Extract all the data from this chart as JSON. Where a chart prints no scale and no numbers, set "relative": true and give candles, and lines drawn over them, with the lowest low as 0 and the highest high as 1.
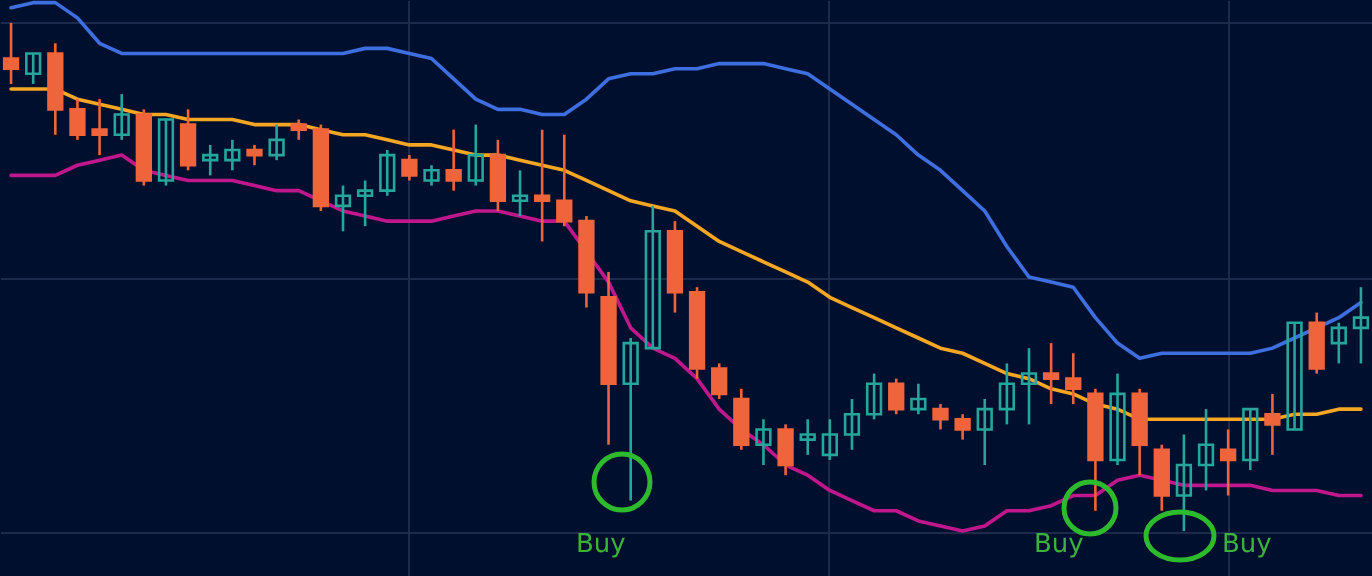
{
  "chart_data": {
    "type": "candlestick",
    "relative": true,
    "grid": true,
    "categories": [
      null,
      null,
      null,
      null,
      null,
      null,
      null,
      null,
      null,
      null,
      null,
      null,
      null,
      null,
      null,
      null,
      null,
      null,
      null,
      null,
      null,
      null,
      null,
      null,
      null,
      null,
      null,
      null,
      null,
      null,
      null,
      null,
      null,
      null,
      null,
      null,
      null,
      null,
      null,
      null,
      null,
      null,
      null,
      null,
      null,
      null,
      null,
      null,
      null,
      null,
      null,
      null,
      null,
      null,
      null,
      null,
      null,
      null,
      null,
      null,
      null,
      null
    ],
    "ohlc": [
      [
        0.93,
        1.0,
        0.88,
        0.91
      ],
      [
        0.9,
        0.94,
        0.88,
        0.94
      ],
      [
        0.94,
        0.96,
        0.78,
        0.83
      ],
      [
        0.83,
        0.85,
        0.77,
        0.78
      ],
      [
        0.79,
        0.85,
        0.74,
        0.78
      ],
      [
        0.78,
        0.86,
        0.77,
        0.82
      ],
      [
        0.82,
        0.83,
        0.68,
        0.69
      ],
      [
        0.69,
        0.81,
        0.68,
        0.81
      ],
      [
        0.8,
        0.83,
        0.71,
        0.72
      ],
      [
        0.73,
        0.76,
        0.7,
        0.74
      ],
      [
        0.73,
        0.77,
        0.71,
        0.75
      ],
      [
        0.75,
        0.76,
        0.72,
        0.74
      ],
      [
        0.74,
        0.8,
        0.73,
        0.77
      ],
      [
        0.8,
        0.81,
        0.77,
        0.79
      ],
      [
        0.79,
        0.8,
        0.63,
        0.64
      ],
      [
        0.64,
        0.68,
        0.59,
        0.66
      ],
      [
        0.66,
        0.69,
        0.6,
        0.67
      ],
      [
        0.67,
        0.75,
        0.66,
        0.74
      ],
      [
        0.73,
        0.74,
        0.69,
        0.7
      ],
      [
        0.69,
        0.72,
        0.68,
        0.71
      ],
      [
        0.71,
        0.79,
        0.67,
        0.69
      ],
      [
        0.69,
        0.8,
        0.68,
        0.74
      ],
      [
        0.74,
        0.77,
        0.63,
        0.65
      ],
      [
        0.65,
        0.71,
        0.62,
        0.66
      ],
      [
        0.66,
        0.79,
        0.57,
        0.65
      ],
      [
        0.65,
        0.78,
        0.6,
        0.61
      ],
      [
        0.61,
        0.62,
        0.44,
        0.47
      ],
      [
        0.46,
        0.51,
        0.17,
        0.29
      ],
      [
        0.29,
        0.38,
        0.06,
        0.37
      ],
      [
        0.36,
        0.64,
        0.36,
        0.59
      ],
      [
        0.59,
        0.61,
        0.43,
        0.47
      ],
      [
        0.47,
        0.48,
        0.3,
        0.32
      ],
      [
        0.32,
        0.33,
        0.26,
        0.27
      ],
      [
        0.26,
        0.28,
        0.16,
        0.17
      ],
      [
        0.17,
        0.22,
        0.13,
        0.2
      ],
      [
        0.2,
        0.21,
        0.11,
        0.13
      ],
      [
        0.18,
        0.22,
        0.15,
        0.19
      ],
      [
        0.15,
        0.22,
        0.14,
        0.19
      ],
      [
        0.19,
        0.26,
        0.16,
        0.23
      ],
      [
        0.23,
        0.31,
        0.22,
        0.29
      ],
      [
        0.29,
        0.3,
        0.23,
        0.24
      ],
      [
        0.24,
        0.29,
        0.23,
        0.26
      ],
      [
        0.24,
        0.25,
        0.2,
        0.22
      ],
      [
        0.22,
        0.23,
        0.18,
        0.2
      ],
      [
        0.2,
        0.26,
        0.13,
        0.24
      ],
      [
        0.24,
        0.33,
        0.21,
        0.29
      ],
      [
        0.29,
        0.36,
        0.21,
        0.31
      ],
      [
        0.31,
        0.37,
        0.25,
        0.3
      ],
      [
        0.3,
        0.35,
        0.25,
        0.28
      ],
      [
        0.27,
        0.28,
        0.04,
        0.14
      ],
      [
        0.14,
        0.31,
        0.13,
        0.27
      ],
      [
        0.27,
        0.28,
        0.11,
        0.17
      ],
      [
        0.16,
        0.17,
        0.04,
        0.07
      ],
      [
        0.07,
        0.19,
        0.0,
        0.13
      ],
      [
        0.13,
        0.24,
        0.08,
        0.17
      ],
      [
        0.16,
        0.2,
        0.07,
        0.14
      ],
      [
        0.14,
        0.24,
        0.12,
        0.24
      ],
      [
        0.23,
        0.27,
        0.15,
        0.21
      ],
      [
        0.2,
        0.41,
        0.2,
        0.41
      ],
      [
        0.41,
        0.43,
        0.31,
        0.32
      ],
      [
        0.37,
        0.41,
        0.33,
        0.4
      ],
      [
        0.4,
        0.48,
        0.33,
        0.42
      ]
    ],
    "colors": [
      "#f0643c",
      "#26a69a",
      "#f0643c",
      "#f0643c",
      "#f0643c",
      "#26a69a",
      "#f0643c",
      "#26a69a",
      "#f0643c",
      "#26a69a",
      "#26a69a",
      "#f0643c",
      "#26a69a",
      "#f0643c",
      "#f0643c",
      "#26a69a",
      "#26a69a",
      "#26a69a",
      "#f0643c",
      "#26a69a",
      "#f0643c",
      "#26a69a",
      "#f0643c",
      "#26a69a",
      "#f0643c",
      "#f0643c",
      "#f0643c",
      "#f0643c",
      "#26a69a",
      "#26a69a",
      "#f0643c",
      "#f0643c",
      "#f0643c",
      "#f0643c",
      "#26a69a",
      "#f0643c",
      "#26a69a",
      "#26a69a",
      "#26a69a",
      "#26a69a",
      "#f0643c",
      "#26a69a",
      "#f0643c",
      "#f0643c",
      "#26a69a",
      "#26a69a",
      "#26a69a",
      "#f0643c",
      "#f0643c",
      "#f0643c",
      "#26a69a",
      "#f0643c",
      "#f0643c",
      "#26a69a",
      "#26a69a",
      "#f0643c",
      "#26a69a",
      "#f0643c",
      "#26a69a",
      "#f0643c",
      "#26a69a",
      "#26a69a"
    ],
    "series": [
      {
        "type": "line",
        "color": "#3d6fe0",
        "values": [
          1.03,
          1.04,
          1.04,
          1.01,
          0.96,
          0.94,
          0.94,
          0.94,
          0.94,
          0.94,
          0.94,
          0.94,
          0.94,
          0.94,
          0.94,
          0.94,
          0.95,
          0.95,
          0.94,
          0.93,
          0.89,
          0.85,
          0.83,
          0.83,
          0.82,
          0.82,
          0.85,
          0.89,
          0.9,
          0.9,
          0.91,
          0.91,
          0.92,
          0.92,
          0.92,
          0.91,
          0.9,
          0.87,
          0.84,
          0.81,
          0.78,
          0.74,
          0.71,
          0.67,
          0.63,
          0.56,
          0.5,
          0.49,
          0.48,
          0.42,
          0.37,
          0.34,
          0.35,
          0.35,
          0.35,
          0.35,
          0.35,
          0.36,
          0.38,
          null,
          0.42,
          0.45
        ]
      },
      {
        "type": "line",
        "color": "#f5a623",
        "values": [
          0.87,
          0.87,
          0.87,
          0.85,
          0.84,
          0.83,
          0.82,
          0.82,
          0.81,
          0.81,
          0.81,
          0.8,
          0.8,
          0.8,
          0.79,
          0.78,
          0.78,
          0.77,
          0.76,
          0.76,
          0.75,
          0.74,
          0.74,
          0.73,
          0.72,
          0.71,
          0.69,
          0.67,
          0.65,
          0.64,
          0.63,
          0.6,
          0.57,
          0.55,
          0.53,
          0.51,
          0.49,
          0.46,
          0.44,
          0.42,
          0.4,
          0.38,
          0.36,
          0.35,
          0.33,
          0.31,
          0.3,
          0.28,
          0.27,
          0.25,
          0.24,
          0.22,
          0.22,
          0.22,
          0.22,
          0.22,
          0.22,
          0.22,
          0.23,
          0.23,
          0.24,
          0.24
        ]
      },
      {
        "type": "line",
        "color": "#c0188c",
        "values": [
          0.7,
          0.7,
          0.7,
          0.72,
          0.73,
          0.74,
          0.71,
          0.7,
          0.69,
          0.69,
          0.69,
          0.68,
          0.67,
          0.67,
          0.65,
          0.63,
          0.62,
          0.61,
          0.61,
          0.61,
          0.62,
          0.63,
          0.63,
          0.62,
          0.61,
          0.61,
          null,
          0.49,
          0.4,
          0.36,
          0.34,
          0.3,
          0.24,
          0.2,
          0.17,
          0.13,
          0.11,
          0.08,
          0.06,
          0.04,
          0.04,
          0.02,
          0.01,
          0.0,
          0.01,
          0.04,
          0.04,
          0.05,
          0.07,
          0.07,
          0.1,
          0.11,
          0.1,
          0.09,
          0.09,
          0.09,
          0.09,
          0.08,
          0.08,
          0.08,
          0.07,
          0.07
        ]
      }
    ],
    "annotations": [
      "Buy",
      "Buy",
      "Buy"
    ]
  }
}
